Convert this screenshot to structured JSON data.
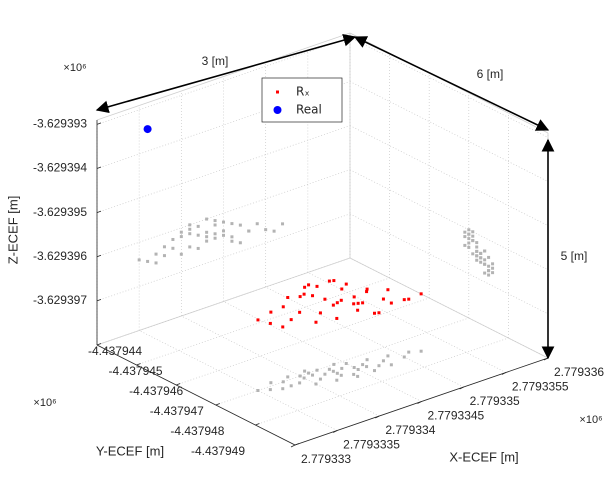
{
  "chart_data": {
    "type": "scatter3d",
    "xlabel": "X-ECEF [m]",
    "ylabel": "Y-ECEF [m]",
    "zlabel": "Z-ECEF [m]",
    "x_exponent": "×10⁶",
    "y_exponent": "×10⁶",
    "z_exponent": "×10⁶",
    "annotations": [
      "3 [m]",
      "6 [m]",
      "5 [m]"
    ],
    "xlim": [
      2.779333,
      2.779336
    ],
    "ylim": [
      -4.437949,
      -4.437944
    ],
    "zlim": [
      -3.629398,
      -3.6293929
    ],
    "xticks": [
      2.779333,
      2.7793335,
      2.779334,
      2.7793345,
      2.779335,
      2.7793355,
      2.779336
    ],
    "yticks": [
      -4.437944,
      -4.437945,
      -4.437946,
      -4.437947,
      -4.437948,
      -4.437949
    ],
    "zticks": [
      -3.629393,
      -3.629394,
      -3.629395,
      -3.629396,
      -3.629397
    ],
    "grid": true,
    "legend": "top",
    "projection_color": "#b3b3b3",
    "series": [
      {
        "name": "Rₓ",
        "color": "#ff0000",
        "x": [
          2.7793342,
          2.7793341,
          2.7793343,
          2.779334,
          2.7793344,
          2.7793339,
          2.7793345,
          2.7793346,
          2.7793348,
          2.779335,
          2.7793338,
          2.7793337,
          2.7793342,
          2.7793343,
          2.7793341,
          2.7793344,
          2.7793347,
          2.7793349,
          2.779334,
          2.7793339,
          2.7793336,
          2.7793345,
          2.7793343,
          2.7793346,
          2.7793351,
          2.7793341,
          2.7793344,
          2.7793338,
          2.7793342,
          2.7793348,
          2.7793335,
          2.7793346,
          2.779334,
          2.7793343,
          2.7793345,
          2.7793352,
          2.7793337,
          2.7793344,
          2.7793341,
          2.7793347
        ],
        "y": [
          -4.4379472,
          -4.4379471,
          -4.4379473,
          -4.437947,
          -4.4379472,
          -4.4379472,
          -4.4379474,
          -4.4379473,
          -4.4379474,
          -4.4379475,
          -4.437947,
          -4.4379469,
          -4.437947,
          -4.4379471,
          -4.4379473,
          -4.4379475,
          -4.4379472,
          -4.4379473,
          -4.4379474,
          -4.4379469,
          -4.4379471,
          -4.4379471,
          -4.4379474,
          -4.4379476,
          -4.4379474,
          -4.437947,
          -4.437947,
          -4.4379472,
          -4.4379475,
          -4.4379476,
          -4.437947,
          -4.4379474,
          -4.4379471,
          -4.4379472,
          -4.4379473,
          -4.4379475,
          -4.4379472,
          -4.4379476,
          -4.4379469,
          -4.4379475
        ],
        "z": [
          -3.6293963,
          -3.6293962,
          -3.6293964,
          -3.6293962,
          -3.6293962,
          -3.6293964,
          -3.6293965,
          -3.6293966,
          -3.6293966,
          -3.6293967,
          -3.6293963,
          -3.6293964,
          -3.6293961,
          -3.629396,
          -3.6293965,
          -3.6293964,
          -3.6293964,
          -3.6293965,
          -3.6293966,
          -3.6293962,
          -3.6293965,
          -3.6293962,
          -3.6293963,
          -3.6293967,
          -3.6293968,
          -3.629396,
          -3.6293961,
          -3.6293965,
          -3.6293966,
          -3.6293966,
          -3.6293964,
          -3.6293963,
          -3.6293961,
          -3.6293965,
          -3.6293964,
          -3.6293967,
          -3.6293966,
          -3.6293965,
          -3.6293961,
          -3.6293968
        ]
      },
      {
        "name": "Real",
        "color": "#0000ff",
        "x": [
          2.7793336
        ],
        "y": [
          -4.437944
        ],
        "z": [
          -3.6293935
        ]
      }
    ]
  }
}
